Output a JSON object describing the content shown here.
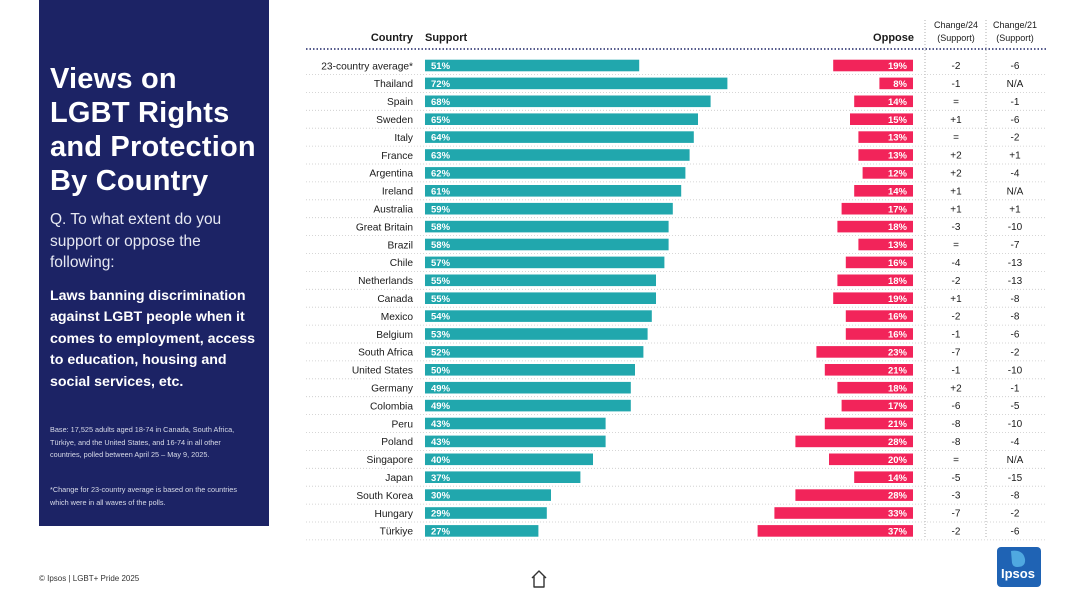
{
  "sidebar": {
    "title": "Views on LGBT Rights and Protection By Country",
    "question": "Q. To what extent do you support or oppose the following:",
    "statement": "Laws banning discrimination against LGBT people when it comes to employment, access to education, housing and social services, etc.",
    "base": "Base: 17,525 adults aged 18-74 in Canada, South Africa, Türkiye, and the United States, and 16-74 in all other countries, polled between April 25 – May 9, 2025.",
    "footnote": "*Change for 23-country average is based on the countries which were in all waves of the polls."
  },
  "footer": {
    "text": "© Ipsos | LGBT+ Pride 2025",
    "logo": "Ipsos"
  },
  "colors": {
    "support": "#21a7ad",
    "oppose": "#f2245a",
    "navy": "#1c2365",
    "logo": "#1f63b4"
  },
  "chart_data": {
    "type": "bar",
    "headers": {
      "country": "Country",
      "support": "Support",
      "oppose": "Oppose",
      "change24": [
        "Change/24",
        "(Support)"
      ],
      "change21": [
        "Change/21",
        "(Support)"
      ]
    },
    "xlim": [
      0,
      100
    ],
    "rows": [
      {
        "country": "23-country average*",
        "support": 51,
        "oppose": 19,
        "change24": "-2",
        "change21": "-6"
      },
      {
        "country": "Thailand",
        "support": 72,
        "oppose": 8,
        "change24": "-1",
        "change21": "N/A"
      },
      {
        "country": "Spain",
        "support": 68,
        "oppose": 14,
        "change24": "=",
        "change21": "-1"
      },
      {
        "country": "Sweden",
        "support": 65,
        "oppose": 15,
        "change24": "+1",
        "change21": "-6"
      },
      {
        "country": "Italy",
        "support": 64,
        "oppose": 13,
        "change24": "=",
        "change21": "-2"
      },
      {
        "country": "France",
        "support": 63,
        "oppose": 13,
        "change24": "+2",
        "change21": "+1"
      },
      {
        "country": "Argentina",
        "support": 62,
        "oppose": 12,
        "change24": "+2",
        "change21": "-4"
      },
      {
        "country": "Ireland",
        "support": 61,
        "oppose": 14,
        "change24": "+1",
        "change21": "N/A"
      },
      {
        "country": "Australia",
        "support": 59,
        "oppose": 17,
        "change24": "+1",
        "change21": "+1"
      },
      {
        "country": "Great Britain",
        "support": 58,
        "oppose": 18,
        "change24": "-3",
        "change21": "-10"
      },
      {
        "country": "Brazil",
        "support": 58,
        "oppose": 13,
        "change24": "=",
        "change21": "-7"
      },
      {
        "country": "Chile",
        "support": 57,
        "oppose": 16,
        "change24": "-4",
        "change21": "-13"
      },
      {
        "country": "Netherlands",
        "support": 55,
        "oppose": 18,
        "change24": "-2",
        "change21": "-13"
      },
      {
        "country": "Canada",
        "support": 55,
        "oppose": 19,
        "change24": "+1",
        "change21": "-8"
      },
      {
        "country": "Mexico",
        "support": 54,
        "oppose": 16,
        "change24": "-2",
        "change21": "-8"
      },
      {
        "country": "Belgium",
        "support": 53,
        "oppose": 16,
        "change24": "-1",
        "change21": "-6"
      },
      {
        "country": "South Africa",
        "support": 52,
        "oppose": 23,
        "change24": "-7",
        "change21": "-2"
      },
      {
        "country": "United States",
        "support": 50,
        "oppose": 21,
        "change24": "-1",
        "change21": "-10"
      },
      {
        "country": "Germany",
        "support": 49,
        "oppose": 18,
        "change24": "+2",
        "change21": "-1"
      },
      {
        "country": "Colombia",
        "support": 49,
        "oppose": 17,
        "change24": "-6",
        "change21": "-5"
      },
      {
        "country": "Peru",
        "support": 43,
        "oppose": 21,
        "change24": "-8",
        "change21": "-10"
      },
      {
        "country": "Poland",
        "support": 43,
        "oppose": 28,
        "change24": "-8",
        "change21": "-4"
      },
      {
        "country": "Singapore",
        "support": 40,
        "oppose": 20,
        "change24": "=",
        "change21": "N/A"
      },
      {
        "country": "Japan",
        "support": 37,
        "oppose": 14,
        "change24": "-5",
        "change21": "-15"
      },
      {
        "country": "South Korea",
        "support": 30,
        "oppose": 28,
        "change24": "-3",
        "change21": "-8"
      },
      {
        "country": "Hungary",
        "support": 29,
        "oppose": 33,
        "change24": "-7",
        "change21": "-2"
      },
      {
        "country": "Türkiye",
        "support": 27,
        "oppose": 37,
        "change24": "-2",
        "change21": "-6"
      }
    ]
  }
}
